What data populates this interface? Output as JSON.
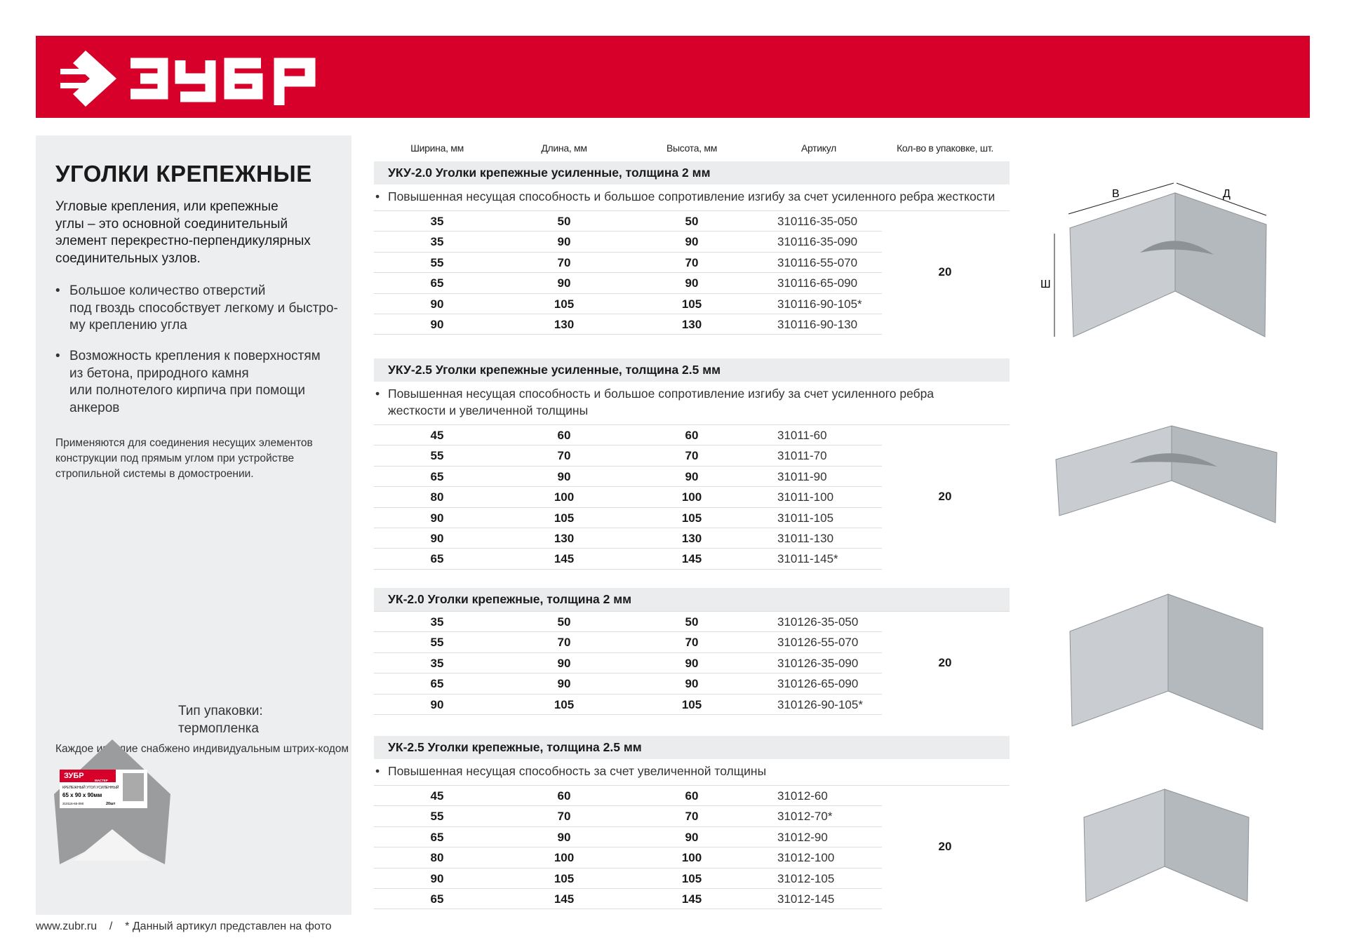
{
  "brand": {
    "name": "ЗУБР",
    "color": "#d7002a"
  },
  "panel": {
    "title": "УГОЛКИ КРЕПЕЖНЫЕ",
    "intro": "Угловые крепления, или крепежные\nуглы – это основной соединительный\nэлемент перекрестно-перпендикулярных\nсоединительных узлов.",
    "bullets": [
      "Большое количество отверстий\nпод гвоздь способствует легкому и быстро-\nму креплению угла",
      "Возможность крепления к поверхностям\nиз бетона, природного камня\nили полнотелого кирпича при помощи\nанкеров"
    ],
    "note": "Применяются для соединения несущих элементов\nконструкции под прямым углом при устройстве\nстропильной системы в домостроении.",
    "pack_type": "Тип упаковки:\nтермопленка",
    "barcode_note": "Каждое изделие снабжено индивидуальным штрих-кодом",
    "pack_label": {
      "brand": "ЗУБР",
      "sub": "МАСТЕР",
      "name": "КРЕПЕЖНЫЙ УГОЛ УСИЛЕННЫЙ",
      "size": "65 x 90 x 90мм",
      "article": "310116-65-090",
      "qty": "20шт"
    }
  },
  "footer": {
    "site": "www.zubr.ru",
    "sep": "/",
    "note": "* Данный артикул представлен на фото"
  },
  "columns": [
    "Ширина, мм",
    "Длина, мм",
    "Высота, мм",
    "Артикул",
    "Кол-во в упаковке, шт."
  ],
  "diagram_labels": {
    "b": "В",
    "d": "Д",
    "w": "Ш"
  },
  "sections": [
    {
      "title": "УКУ-2.0  Уголки крепежные усиленные, толщина 2 мм",
      "note": "Повышенная несущая способность и большое сопротивление изгибу за счет усиленного ребра жесткости",
      "qty": "20",
      "rows": [
        [
          "35",
          "50",
          "50",
          "310116-35-050"
        ],
        [
          "35",
          "90",
          "90",
          "310116-35-090"
        ],
        [
          "55",
          "70",
          "70",
          "310116-55-070"
        ],
        [
          "65",
          "90",
          "90",
          "310116-65-090"
        ],
        [
          "90",
          "105",
          "105",
          "310116-90-105*"
        ],
        [
          "90",
          "130",
          "130",
          "310116-90-130"
        ]
      ]
    },
    {
      "title": "УКУ-2.5  Уголки крепежные усиленные, толщина 2.5 мм",
      "note": "Повышенная несущая способность и большое сопротивление изгибу за счет усиленного ребра\nжесткости и увеличенной толщины",
      "qty": "20",
      "rows": [
        [
          "45",
          "60",
          "60",
          "31011-60"
        ],
        [
          "55",
          "70",
          "70",
          "31011-70"
        ],
        [
          "65",
          "90",
          "90",
          "31011-90"
        ],
        [
          "80",
          "100",
          "100",
          "31011-100"
        ],
        [
          "90",
          "105",
          "105",
          "31011-105"
        ],
        [
          "90",
          "130",
          "130",
          "31011-130"
        ],
        [
          "65",
          "145",
          "145",
          "31011-145*"
        ]
      ]
    },
    {
      "title": "УК-2.0  Уголки крепежные, толщина 2 мм",
      "note": "",
      "qty": "20",
      "rows": [
        [
          "35",
          "50",
          "50",
          "310126-35-050"
        ],
        [
          "55",
          "70",
          "70",
          "310126-55-070"
        ],
        [
          "35",
          "90",
          "90",
          "310126-35-090"
        ],
        [
          "65",
          "90",
          "90",
          "310126-65-090"
        ],
        [
          "90",
          "105",
          "105",
          "310126-90-105*"
        ]
      ]
    },
    {
      "title": "УК-2.5  Уголки крепежные, толщина 2.5 мм",
      "note": "Повышенная несущая способность за счет увеличенной толщины",
      "qty": "20",
      "rows": [
        [
          "45",
          "60",
          "60",
          "31012-60"
        ],
        [
          "55",
          "70",
          "70",
          "31012-70*"
        ],
        [
          "65",
          "90",
          "90",
          "31012-90"
        ],
        [
          "80",
          "100",
          "100",
          "31012-100"
        ],
        [
          "90",
          "105",
          "105",
          "31012-105"
        ],
        [
          "65",
          "145",
          "145",
          "31012-145"
        ]
      ]
    }
  ]
}
